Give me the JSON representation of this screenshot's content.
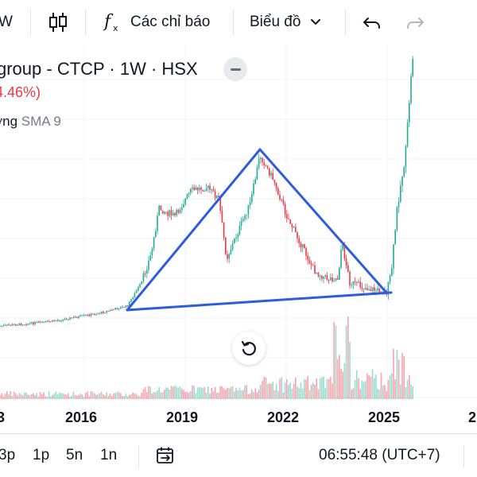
{
  "toolbar": {
    "interval_label": "W",
    "indicators_label": "Các chỉ báo",
    "chart_type_label": "Biểu đồ"
  },
  "legend": {
    "symbol_title": "group - CTCP · 1W · HSX",
    "change_text": "4.46%)",
    "volume_label": "ợng",
    "volume_sma_label": "SMA 9"
  },
  "time_axis": {
    "labels": [
      "3",
      "2016",
      "2019",
      "2022",
      "2025",
      "2"
    ]
  },
  "bottom_bar": {
    "ranges": [
      "3p",
      "1p",
      "5n",
      "1n"
    ],
    "clock": "06:55:48 (UTC+7)"
  },
  "colors": {
    "up": "#22ab94",
    "down": "#f23645",
    "pattern_line": "#2e5be0",
    "grid": "#f0f3fa"
  },
  "icons": [
    "candlestick-icon",
    "function-icon",
    "chevron-down-icon",
    "undo-icon",
    "redo-icon",
    "reset-chart-icon",
    "goto-date-icon"
  ]
}
